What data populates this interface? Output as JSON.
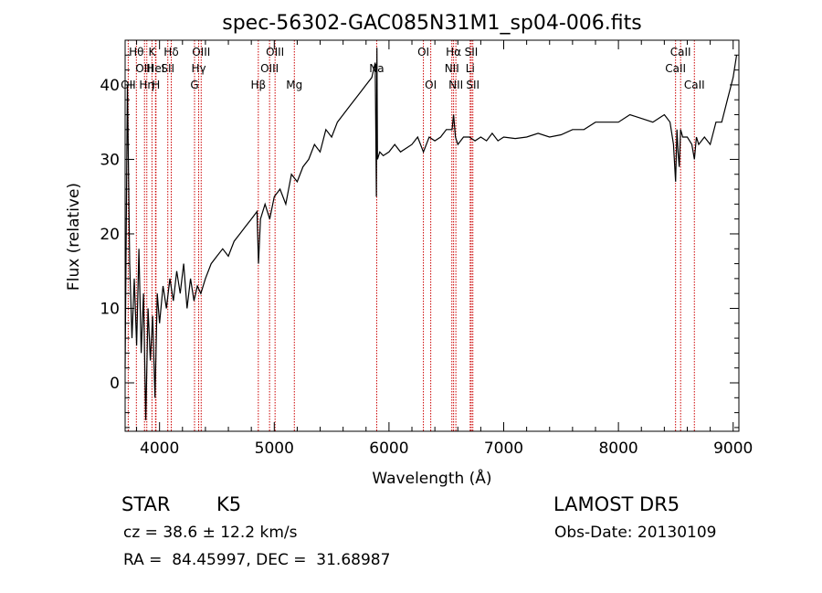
{
  "chart_data": {
    "type": "line",
    "title": "spec-56302-GAC085N31M1_sp04-006.fits",
    "xlabel": "Wavelength (Å)",
    "ylabel": "Flux (relative)",
    "xlim": [
      3700,
      9050
    ],
    "ylim": [
      -6.5,
      46
    ],
    "x_ticks": [
      4000,
      5000,
      6000,
      7000,
      8000,
      9000
    ],
    "y_ticks": [
      0,
      10,
      20,
      30,
      40
    ],
    "grid": false,
    "series": [
      {
        "x": [
          3700,
          3720,
          3740,
          3760,
          3780,
          3800,
          3820,
          3840,
          3860,
          3880,
          3900,
          3920,
          3940,
          3960,
          3980,
          4000,
          4030,
          4060,
          4090,
          4120,
          4150,
          4180,
          4210,
          4240,
          4270,
          4300,
          4330,
          4360,
          4400,
          4450,
          4500,
          4550,
          4600,
          4650,
          4700,
          4750,
          4800,
          4850,
          4862,
          4880,
          4920,
          4960,
          5000,
          5050,
          5100,
          5150,
          5200,
          5250,
          5300,
          5350,
          5400,
          5450,
          5500,
          5550,
          5600,
          5650,
          5700,
          5750,
          5800,
          5850,
          5880,
          5890,
          5895,
          5900,
          5920,
          5950,
          6000,
          6050,
          6100,
          6150,
          6200,
          6250,
          6300,
          6350,
          6400,
          6450,
          6500,
          6550,
          6563,
          6580,
          6600,
          6650,
          6700,
          6750,
          6800,
          6850,
          6900,
          6950,
          7000,
          7100,
          7200,
          7300,
          7400,
          7500,
          7600,
          7700,
          7800,
          7900,
          8000,
          8100,
          8200,
          8300,
          8400,
          8450,
          8480,
          8498,
          8510,
          8520,
          8530,
          8542,
          8560,
          8600,
          8640,
          8662,
          8680,
          8700,
          8750,
          8800,
          8850,
          8900,
          8950,
          9000,
          9030
        ],
        "y": [
          2,
          40,
          16,
          6,
          14,
          5,
          18,
          4,
          12,
          -5,
          10,
          3,
          9,
          -2,
          12,
          8,
          13,
          10,
          14,
          11,
          15,
          12,
          16,
          10,
          14,
          11,
          13,
          12,
          14,
          16,
          17,
          18,
          17,
          19,
          20,
          21,
          22,
          23,
          16,
          22,
          24,
          22,
          25,
          26,
          24,
          28,
          27,
          29,
          30,
          32,
          31,
          34,
          33,
          35,
          36,
          37,
          38,
          39,
          40,
          41,
          43,
          25,
          45,
          30,
          31,
          30.5,
          31,
          32,
          31,
          31.5,
          32,
          33,
          31,
          33,
          32.5,
          33,
          34,
          34,
          36,
          33,
          32,
          33,
          33,
          32.5,
          33,
          32.5,
          33.5,
          32.5,
          33,
          32.8,
          33,
          33.5,
          33,
          33.3,
          34,
          34,
          35,
          35,
          35,
          36,
          35.5,
          35,
          36,
          35,
          32,
          27,
          34,
          31,
          29,
          34,
          33,
          33,
          32,
          30,
          33,
          32,
          33,
          32,
          35,
          35,
          38,
          41,
          44
        ]
      }
    ],
    "line_markers": [
      {
        "label": "OII",
        "wave": 3727,
        "row": 2
      },
      {
        "label": "Hθ",
        "wave": 3798,
        "row": 0
      },
      {
        "label": "OIII",
        "wave": 3869,
        "row": 1
      },
      {
        "label": "Hη",
        "wave": 3889,
        "row": 2
      },
      {
        "label": "K",
        "wave": 3934,
        "row": 0
      },
      {
        "label": "HeI",
        "wave": 3965,
        "row": 1
      },
      {
        "label": "H",
        "wave": 3969,
        "row": 2
      },
      {
        "label": "Hδ",
        "wave": 4102,
        "row": 0
      },
      {
        "label": "SII",
        "wave": 4072,
        "row": 1
      },
      {
        "label": "G",
        "wave": 4305,
        "row": 2
      },
      {
        "label": "Hγ",
        "wave": 4341,
        "row": 1
      },
      {
        "label": "OIII",
        "wave": 4363,
        "row": 0
      },
      {
        "label": "Hβ",
        "wave": 4861,
        "row": 2
      },
      {
        "label": "OIII",
        "wave": 4959,
        "row": 1
      },
      {
        "label": "OIII",
        "wave": 5007,
        "row": 0
      },
      {
        "label": "Mg",
        "wave": 5175,
        "row": 2
      },
      {
        "label": "Na",
        "wave": 5893,
        "row": 1
      },
      {
        "label": "OI",
        "wave": 6300,
        "row": 0
      },
      {
        "label": "OI",
        "wave": 6364,
        "row": 2
      },
      {
        "label": "NII",
        "wave": 6548,
        "row": 1
      },
      {
        "label": "Hα",
        "wave": 6563,
        "row": 0
      },
      {
        "label": "NII",
        "wave": 6583,
        "row": 2
      },
      {
        "label": "Li",
        "wave": 6708,
        "row": 1
      },
      {
        "label": "SII",
        "wave": 6717,
        "row": 0
      },
      {
        "label": "SII",
        "wave": 6731,
        "row": 2
      },
      {
        "label": "CaII",
        "wave": 8498,
        "row": 1
      },
      {
        "label": "CaII",
        "wave": 8542,
        "row": 0
      },
      {
        "label": "CaII",
        "wave": 8662,
        "row": 2
      }
    ],
    "colors": {
      "spectrum": "#000000",
      "marker_line": "#cc0000",
      "text": "#000000"
    }
  },
  "info": {
    "class_label": "STAR",
    "subclass": "K5",
    "redshift": "cz = 38.6 ± 12.2 km/s",
    "coords": "RA =  84.45997, DEC =  31.68987",
    "survey": "LAMOST DR5",
    "obs_date": "Obs-Date: 20130109"
  }
}
